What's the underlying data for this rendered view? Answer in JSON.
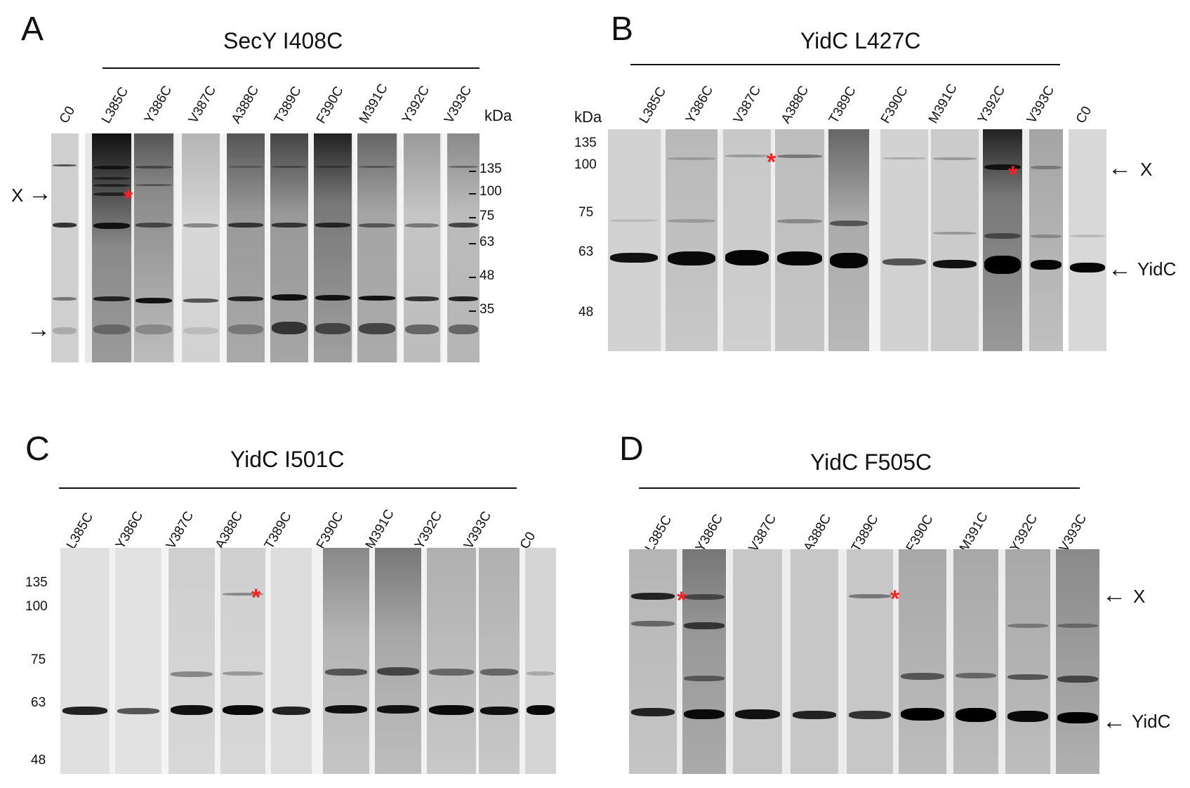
{
  "panels": {
    "A": {
      "letter": "A",
      "title": "SecY I408C",
      "lanes": [
        "C0",
        "L385C",
        "Y386C",
        "V387C",
        "A388C",
        "T389C",
        "F390C",
        "M391C",
        "Y392C",
        "V393C"
      ],
      "kda": "kDa",
      "markers": [
        "135",
        "100",
        "75",
        "63",
        "48",
        "35"
      ],
      "x_label": "X"
    },
    "B": {
      "letter": "B",
      "title": "YidC L427C",
      "lanes": [
        "L385C",
        "Y386C",
        "V387C",
        "A388C",
        "T389C",
        "F390C",
        "M391C",
        "Y392C",
        "V393C",
        "C0"
      ],
      "kda": "kDa",
      "markers": [
        "135",
        "100",
        "75",
        "63",
        "48"
      ],
      "x_label": "X",
      "yidc_label": "YidC"
    },
    "C": {
      "letter": "C",
      "title": "YidC I501C",
      "lanes": [
        "L385C",
        "Y386C",
        "V387C",
        "A388C",
        "T389C",
        "F390C",
        "M391C",
        "Y392C",
        "V393C",
        "C0"
      ],
      "markers": [
        "135",
        "100",
        "75",
        "63",
        "48"
      ]
    },
    "D": {
      "letter": "D",
      "title": "YidC F505C",
      "lanes": [
        "L385C",
        "Y386C",
        "V387C",
        "A388C",
        "T389C",
        "F390C",
        "M391C",
        "Y392C",
        "V393C"
      ],
      "x_label": "X",
      "yidc_label": "YidC"
    }
  },
  "glyphs": {
    "star": "*",
    "arrow_right": "→",
    "arrow_left": "←"
  },
  "colors": {
    "asterisk": "#ff2020",
    "gel_background": "#e8e8e8",
    "band": "#111111"
  }
}
